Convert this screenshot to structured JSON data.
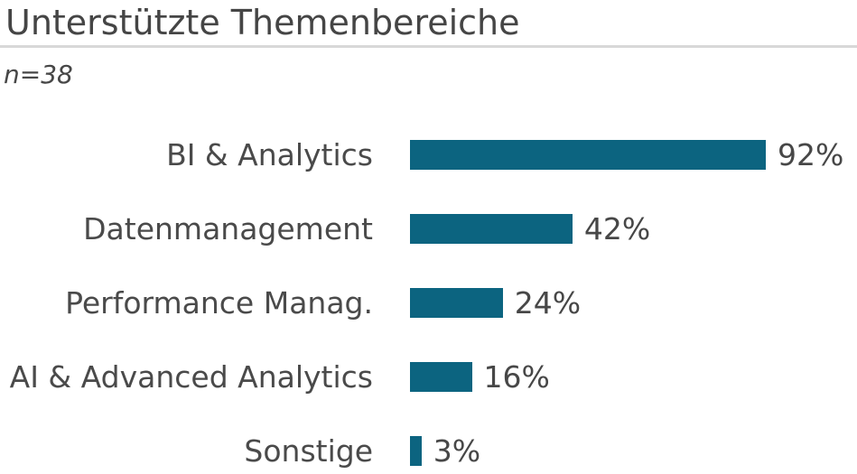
{
  "title": "Unterstützte Themenbereiche",
  "subtitle": "n=38",
  "colors": {
    "bar": "#0c6480",
    "title_text": "#454545",
    "label_text": "#4a4a4a",
    "divider": "#d8d8d8",
    "background": "#ffffff"
  },
  "chart_data": {
    "type": "bar",
    "orientation": "horizontal",
    "title": "Unterstützte Themenbereiche",
    "subtitle": "n=38",
    "categories": [
      "BI & Analytics",
      "Datenmanagement",
      "Performance Manag.",
      "AI & Advanced Analytics",
      "Sonstige"
    ],
    "values": [
      92,
      42,
      24,
      16,
      3
    ],
    "value_suffix": "%",
    "value_labels_shown": true,
    "xlim": [
      0,
      100
    ],
    "grid": false,
    "legend": false,
    "axis_ticks_shown": false
  }
}
